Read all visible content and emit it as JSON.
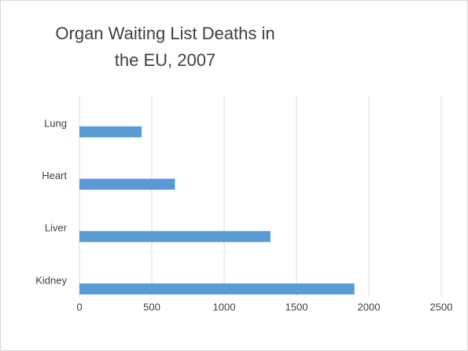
{
  "chart_data": {
    "type": "bar",
    "orientation": "horizontal",
    "title": "Organ Waiting List Deaths in the EU, 2007",
    "categories": [
      "Kidney",
      "Liver",
      "Heart",
      "Lung"
    ],
    "values": [
      1900,
      1320,
      660,
      430
    ],
    "color": "#5b9bd5",
    "xlim": [
      0,
      2500
    ],
    "xticks": [
      0,
      500,
      1000,
      1500,
      2000,
      2500
    ],
    "grid": true
  }
}
